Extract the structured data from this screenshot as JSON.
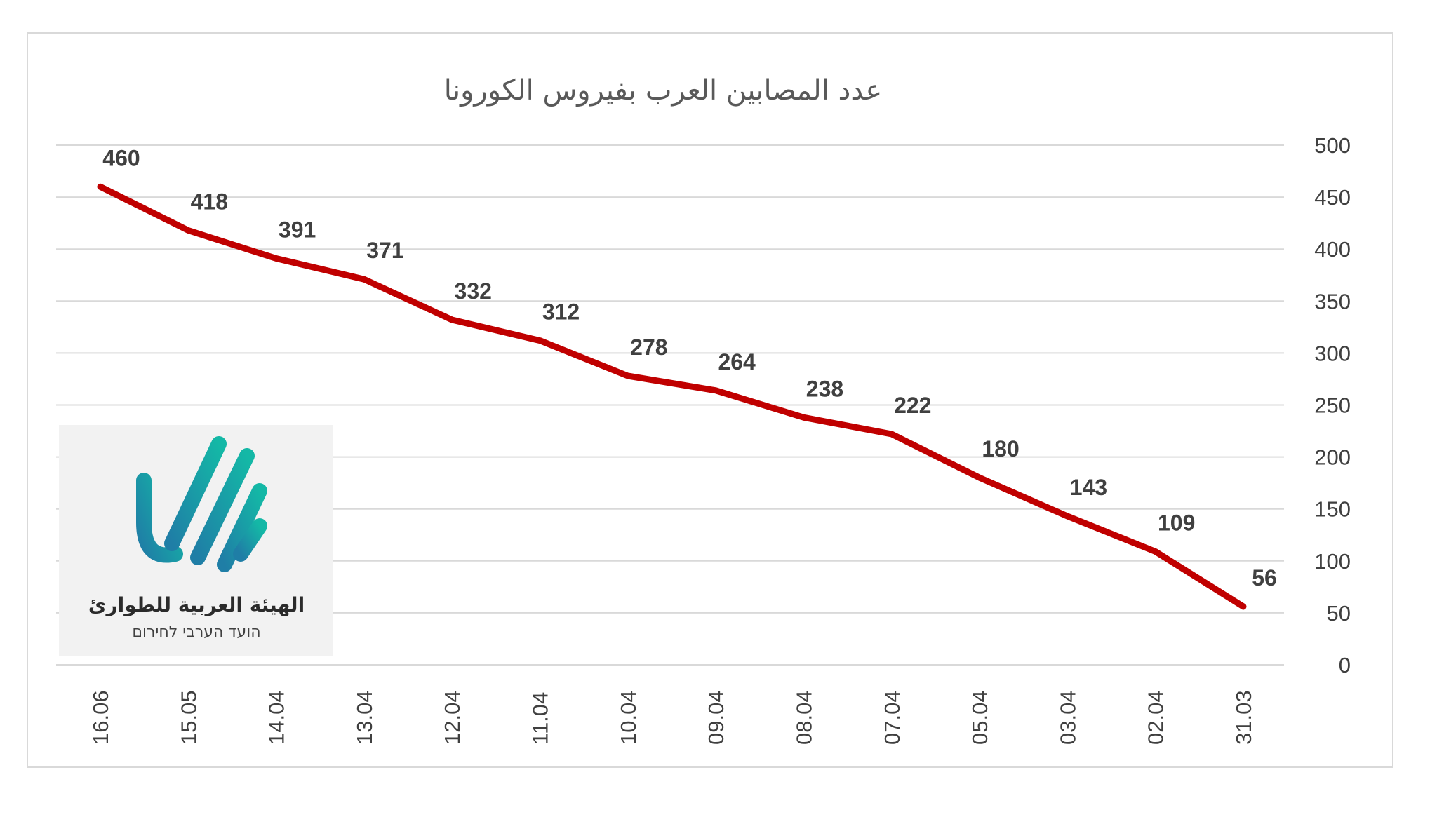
{
  "chart_data": {
    "type": "line",
    "title": "عدد المصابين العرب بفيروس الكورونا",
    "categories": [
      "16.06",
      "15.05",
      "14.04",
      "13.04",
      "12.04",
      "11.04",
      "10.04",
      "09.04",
      "08.04",
      "07.04",
      "05.04",
      "03.04",
      "02.04",
      "31.03"
    ],
    "series": [
      {
        "values": [
          460,
          418,
          391,
          371,
          332,
          312,
          278,
          264,
          238,
          222,
          180,
          143,
          109,
          56
        ],
        "color": "#c00000"
      }
    ],
    "ylim": [
      0,
      500
    ],
    "yticks": [
      0,
      50,
      100,
      150,
      200,
      250,
      300,
      350,
      400,
      450,
      500
    ],
    "y_axis_side": "right",
    "grid": true,
    "data_labels": true
  },
  "logo": {
    "text_arabic": "الهيئة العربية للطوارئ",
    "text_hebrew": "הועד הערבי לחירום",
    "colors": [
      "#1aa6a0",
      "#1f7ea6",
      "#14b8a6"
    ]
  }
}
